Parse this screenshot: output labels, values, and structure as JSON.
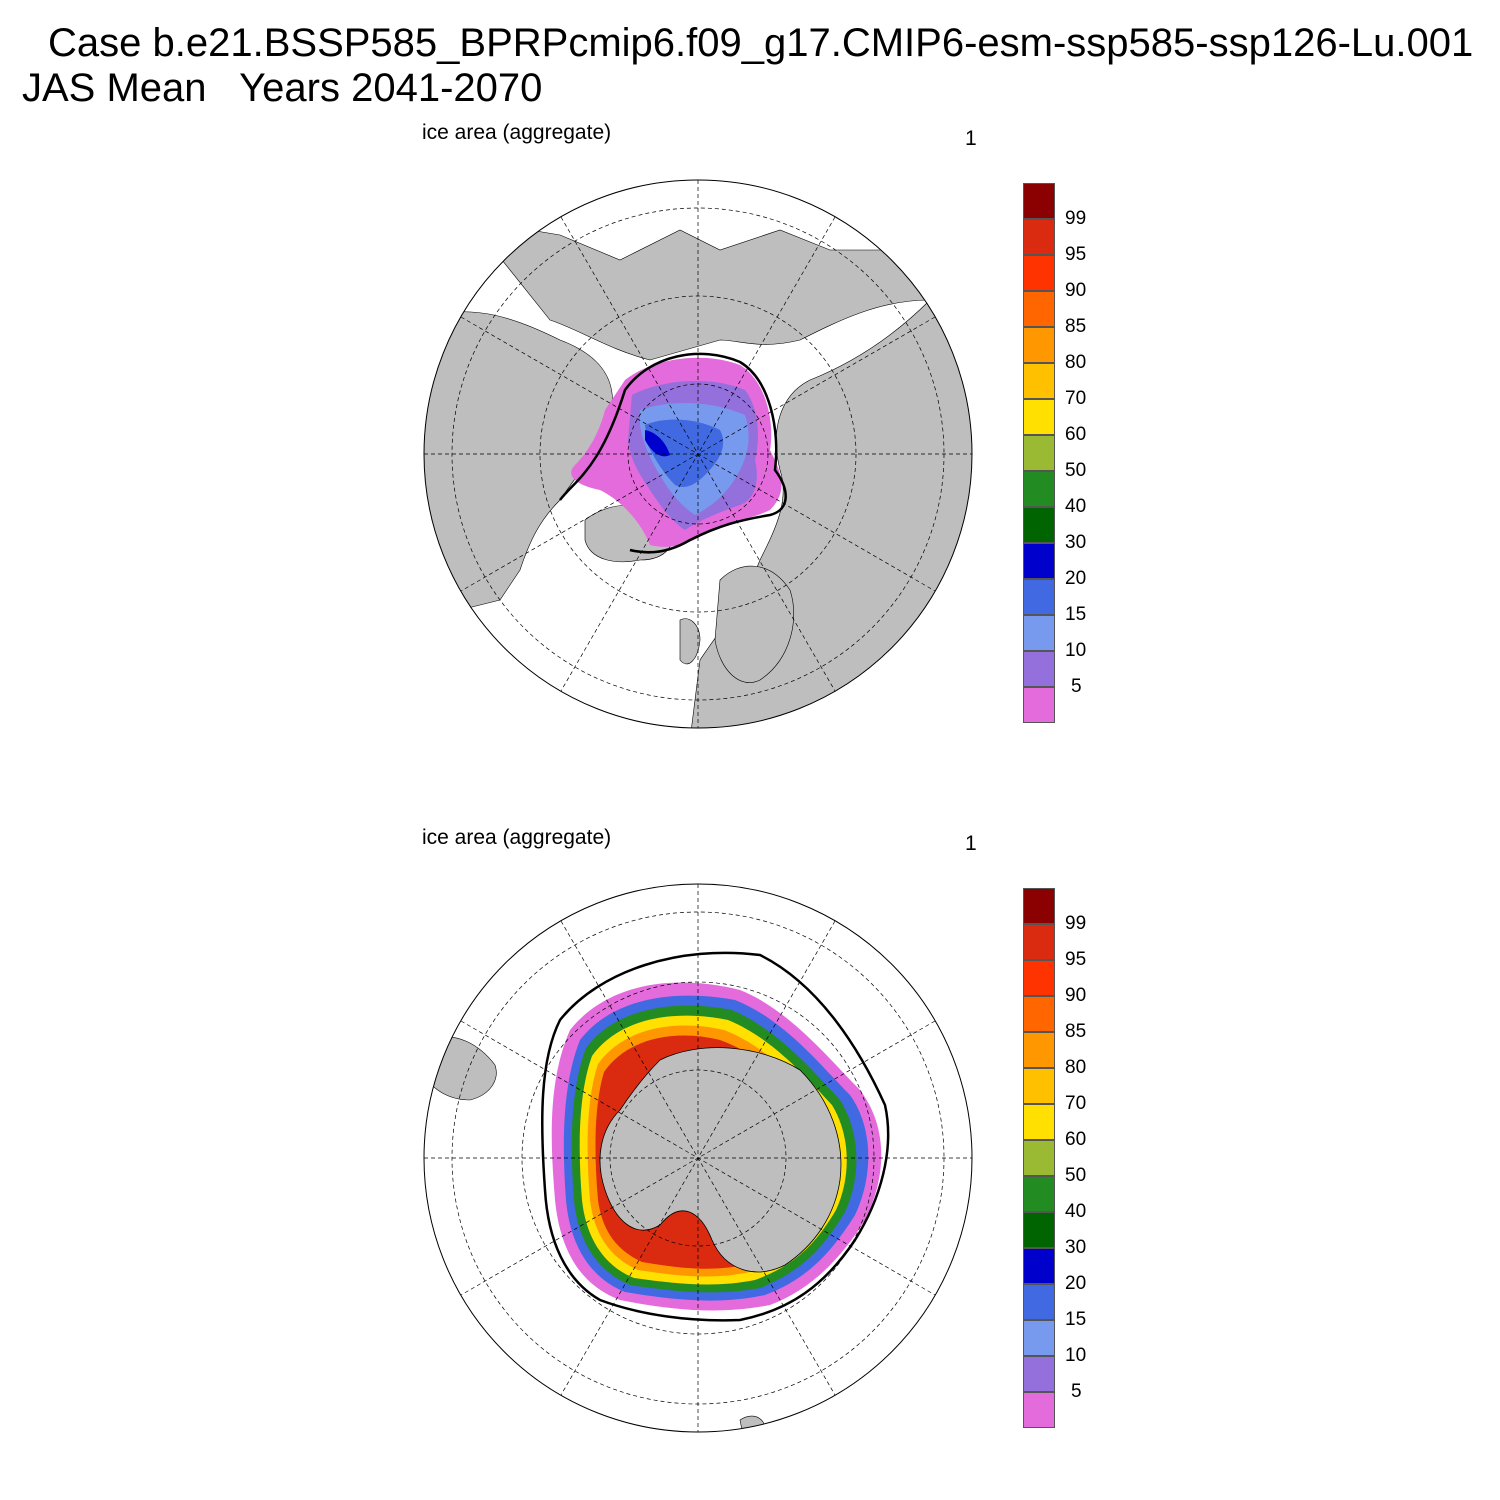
{
  "title_line1": "Case b.e21.BSSP585_BPRPcmip6.f09_g17.CMIP6-esm-ssp585-ssp126-Lu.001",
  "title_line2": "JAS Mean   Years 2041-2070",
  "colors": {
    "land": "#bebebe",
    "levels": [
      "#e36bdc",
      "#9370db",
      "#7799ee",
      "#4169e1",
      "#0000cd",
      "#006400",
      "#228b22",
      "#9aba34",
      "#ffe000",
      "#ffc000",
      "#ff9800",
      "#ff6600",
      "#ff3300",
      "#da2a10",
      "#8b0000"
    ]
  },
  "panels": [
    {
      "name": "arctic",
      "title": "ice area  (aggregate)",
      "number": "1",
      "colorbar_labels": [
        "5",
        "10",
        "15",
        "20",
        "30",
        "40",
        "50",
        "60",
        "70",
        "80",
        "85",
        "90",
        "95",
        "99"
      ]
    },
    {
      "name": "antarctic",
      "title": "ice area  (aggregate)",
      "number": "1",
      "colorbar_labels": [
        "5",
        "10",
        "15",
        "20",
        "30",
        "40",
        "50",
        "60",
        "70",
        "80",
        "85",
        "90",
        "95",
        "99"
      ]
    }
  ]
}
